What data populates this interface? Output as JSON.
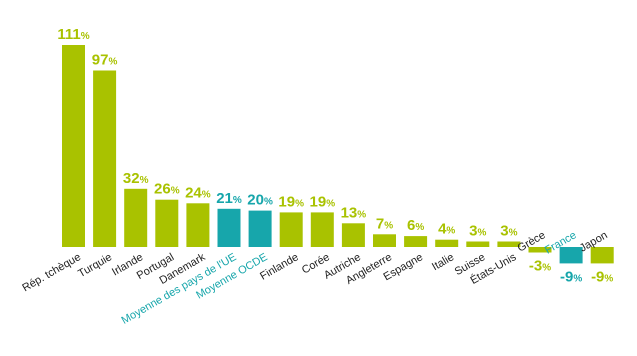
{
  "colors": {
    "default": "#a9c200",
    "highlight": "#17a6ab"
  },
  "chart_data": {
    "type": "bar",
    "title": "",
    "xlabel": "",
    "ylabel": "",
    "unit_suffix": "%",
    "ylim": [
      -9,
      111
    ],
    "grid": false,
    "categories": [
      "Rép. tchèque",
      "Turquie",
      "Irlande",
      "Portugal",
      "Danemark",
      "Moyenne des pays de l'UE",
      "Moyenne OCDE",
      "Finlande",
      "Corée",
      "Autriche",
      "Angleterre",
      "Espagne",
      "Italie",
      "Suisse",
      "États-Unis",
      "Grèce",
      "France",
      "Japon"
    ],
    "values": [
      111,
      97,
      32,
      26,
      24,
      21,
      20,
      19,
      19,
      13,
      7,
      6,
      4,
      3,
      3,
      -3,
      -9,
      -9
    ],
    "value_labels": [
      "111",
      "97",
      "32",
      "26",
      "24",
      "21",
      "20",
      "19",
      "19",
      "13",
      "7",
      "6",
      "4",
      "3",
      "3",
      "-3",
      "-9",
      "-9"
    ],
    "highlighted": [
      "Moyenne des pays de l'UE",
      "Moyenne OCDE",
      "France"
    ]
  }
}
